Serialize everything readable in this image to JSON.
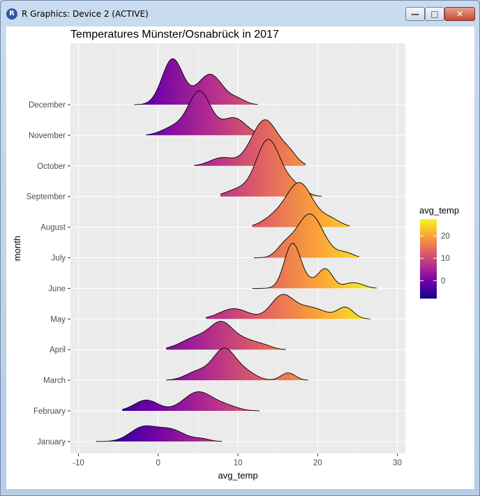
{
  "window": {
    "title": "R Graphics: Device 2 (ACTIVE)",
    "app_icon": "R",
    "minimize_glyph": "—",
    "maximize_glyph": "□",
    "close_glyph": "✕"
  },
  "chart_data": {
    "type": "ridgeline",
    "title": "Temperatures Münster/Osnabrück in 2017",
    "xlabel": "avg_temp",
    "ylabel": "month",
    "xlim": [
      -11,
      31
    ],
    "x_ticks": [
      -10,
      0,
      10,
      20,
      30
    ],
    "grid": true,
    "legend": {
      "title": "avg_temp",
      "placement": "right",
      "ticks": [
        0,
        10,
        20
      ],
      "range": [
        -8,
        27.5
      ],
      "colors": [
        "#0d0887",
        "#6a00a8",
        "#b12a90",
        "#e16462",
        "#fca636",
        "#f0f921"
      ]
    },
    "months": [
      "January",
      "February",
      "March",
      "April",
      "May",
      "June",
      "July",
      "August",
      "September",
      "October",
      "November",
      "December"
    ],
    "densities": [
      {
        "month": "January",
        "min": -7.8,
        "max": 8.0,
        "peaks": [
          [
            -2.0,
            1.6,
            0.58
          ],
          [
            1.5,
            1.8,
            0.52
          ],
          [
            5.5,
            1.0,
            0.1
          ]
        ]
      },
      {
        "month": "February",
        "min": -4.5,
        "max": 12.7,
        "peaks": [
          [
            -1.5,
            1.5,
            0.47
          ],
          [
            5.0,
            1.8,
            0.82
          ],
          [
            8.5,
            1.5,
            0.2
          ]
        ]
      },
      {
        "month": "March",
        "min": 1.0,
        "max": 18.8,
        "peaks": [
          [
            5.0,
            1.5,
            0.38
          ],
          [
            8.3,
            1.4,
            1.33
          ],
          [
            11.0,
            1.3,
            0.32
          ],
          [
            16.3,
            0.9,
            0.32
          ]
        ]
      },
      {
        "month": "April",
        "min": 1.0,
        "max": 16.0,
        "peaks": [
          [
            5.0,
            2.0,
            0.55
          ],
          [
            8.0,
            1.4,
            0.98
          ],
          [
            11.0,
            1.6,
            0.4
          ],
          [
            13.5,
            1.0,
            0.1
          ]
        ]
      },
      {
        "month": "May",
        "min": 6.0,
        "max": 26.6,
        "peaks": [
          [
            9.5,
            1.8,
            0.45
          ],
          [
            15.5,
            1.4,
            0.95
          ],
          [
            19.0,
            2.0,
            0.5
          ],
          [
            23.5,
            1.0,
            0.48
          ]
        ]
      },
      {
        "month": "June",
        "min": 11.8,
        "max": 27.4,
        "peaks": [
          [
            16.8,
            1.0,
            1.8
          ],
          [
            18.5,
            1.5,
            0.3
          ],
          [
            21.0,
            0.9,
            0.78
          ],
          [
            24.5,
            1.2,
            0.25
          ]
        ]
      },
      {
        "month": "July",
        "min": 12.0,
        "max": 25.2,
        "peaks": [
          [
            15.8,
            1.0,
            0.4
          ],
          [
            19.0,
            1.7,
            1.9
          ],
          [
            23.5,
            1.0,
            0.2
          ]
        ]
      },
      {
        "month": "August",
        "min": 11.8,
        "max": 24.0,
        "peaks": [
          [
            14.8,
            1.6,
            0.45
          ],
          [
            17.8,
            1.6,
            1.85
          ],
          [
            21.5,
            1.3,
            0.35
          ]
        ]
      },
      {
        "month": "September",
        "min": 7.8,
        "max": 20.5,
        "peaks": [
          [
            10.0,
            1.5,
            0.3
          ],
          [
            13.8,
            1.5,
            2.45
          ],
          [
            17.0,
            1.3,
            0.45
          ]
        ]
      },
      {
        "month": "October",
        "min": 4.5,
        "max": 18.5,
        "peaks": [
          [
            8.0,
            1.5,
            0.35
          ],
          [
            13.4,
            1.7,
            2.0
          ],
          [
            16.5,
            1.0,
            0.4
          ]
        ]
      },
      {
        "month": "November",
        "min": -1.5,
        "max": 14.5,
        "peaks": [
          [
            2.0,
            1.5,
            0.35
          ],
          [
            5.2,
            1.4,
            1.88
          ],
          [
            9.5,
            1.5,
            0.75
          ]
        ]
      },
      {
        "month": "December",
        "min": -3.0,
        "max": 12.5,
        "peaks": [
          [
            1.8,
            1.3,
            1.98
          ],
          [
            6.5,
            1.6,
            1.32
          ],
          [
            10.0,
            1.0,
            0.2
          ]
        ]
      }
    ]
  }
}
